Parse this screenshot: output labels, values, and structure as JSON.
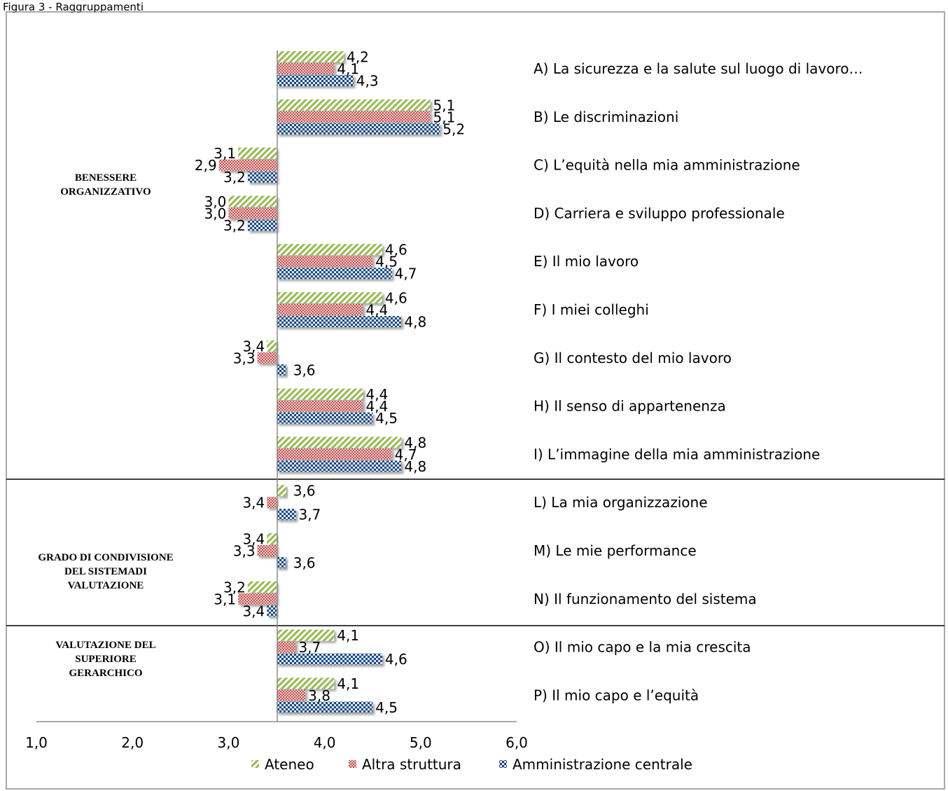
{
  "caption": "Figura 3 - Raggruppamenti",
  "colors": {
    "ateneo": "#9bbb59",
    "altra": "#c0504d",
    "amministrazione": "#1f497d"
  },
  "chart_data": {
    "type": "bar",
    "orientation": "horizontal",
    "xlim": [
      1.0,
      6.0
    ],
    "baseline": 3.5,
    "x_ticks": [
      "1,0",
      "2,0",
      "3,0",
      "4,0",
      "5,0",
      "6,0"
    ],
    "legend": [
      "Ateneo",
      "Altra struttura",
      "Amministrazione centrale"
    ],
    "legend_position": "bottom",
    "sections": [
      {
        "label": [
          "BENESSERE",
          "ORGANIZZATIVO"
        ],
        "categories": [
          "A",
          "B",
          "C",
          "D",
          "E",
          "F",
          "G",
          "H",
          "I"
        ]
      },
      {
        "label": [
          "GRADO DI CONDIVISIONE",
          "DEL SISTEMADI",
          "VALUTAZIONE"
        ],
        "categories": [
          "L",
          "M",
          "N"
        ]
      },
      {
        "label": [
          "VALUTAZIONE DEL",
          "SUPERIORE",
          "GERARCHICO"
        ],
        "categories": [
          "O",
          "P"
        ]
      }
    ],
    "categories": [
      "A) La sicurezza e la salute sul luogo di lavoro…",
      "B) Le discriminazioni",
      "C) L’equità nella mia amministrazione",
      "D) Carriera e sviluppo professionale",
      "E) Il mio lavoro",
      "F) I miei colleghi",
      "G) Il contesto del mio lavoro",
      "H) Il senso di appartenenza",
      "I) L’immagine della mia amministrazione",
      "L) La mia organizzazione",
      "M) Le mie performance",
      "N) Il funzionamento del sistema",
      "O) Il mio capo e la mia crescita",
      "P) Il mio capo e l’equità"
    ],
    "series": [
      {
        "name": "Ateneo",
        "values": [
          4.2,
          5.1,
          3.1,
          3.0,
          4.6,
          4.6,
          3.4,
          4.4,
          4.8,
          3.6,
          3.4,
          3.2,
          4.1,
          4.1
        ],
        "labels": [
          "4,2",
          "5,1",
          "3,1",
          "3,0",
          "4,6",
          "4,6",
          "3,4",
          "4,4",
          "4,8",
          "3,6",
          "3,4",
          "3,2",
          "4,1",
          "4,1"
        ]
      },
      {
        "name": "Altra struttura",
        "values": [
          4.1,
          5.1,
          2.9,
          3.0,
          4.5,
          4.4,
          3.3,
          4.4,
          4.7,
          3.4,
          3.3,
          3.1,
          3.7,
          3.8
        ],
        "labels": [
          "4,1",
          "5,1",
          "2,9",
          "3,0",
          "4,5",
          "4,4",
          "3,3",
          "4,4",
          "4,7",
          "3,4",
          "3,3",
          "3,1",
          "3,7",
          "3,8"
        ]
      },
      {
        "name": "Amministrazione centrale",
        "values": [
          4.3,
          5.2,
          3.2,
          3.2,
          4.7,
          4.8,
          3.6,
          4.5,
          4.8,
          3.7,
          3.6,
          3.4,
          4.6,
          4.5
        ],
        "labels": [
          "4,3",
          "5,2",
          "3,2",
          "3,2",
          "4,7",
          "4,8",
          "3,6",
          "4,5",
          "4,8",
          "3,7",
          "3,6",
          "3,4",
          "4,6",
          "4,5"
        ]
      }
    ]
  }
}
